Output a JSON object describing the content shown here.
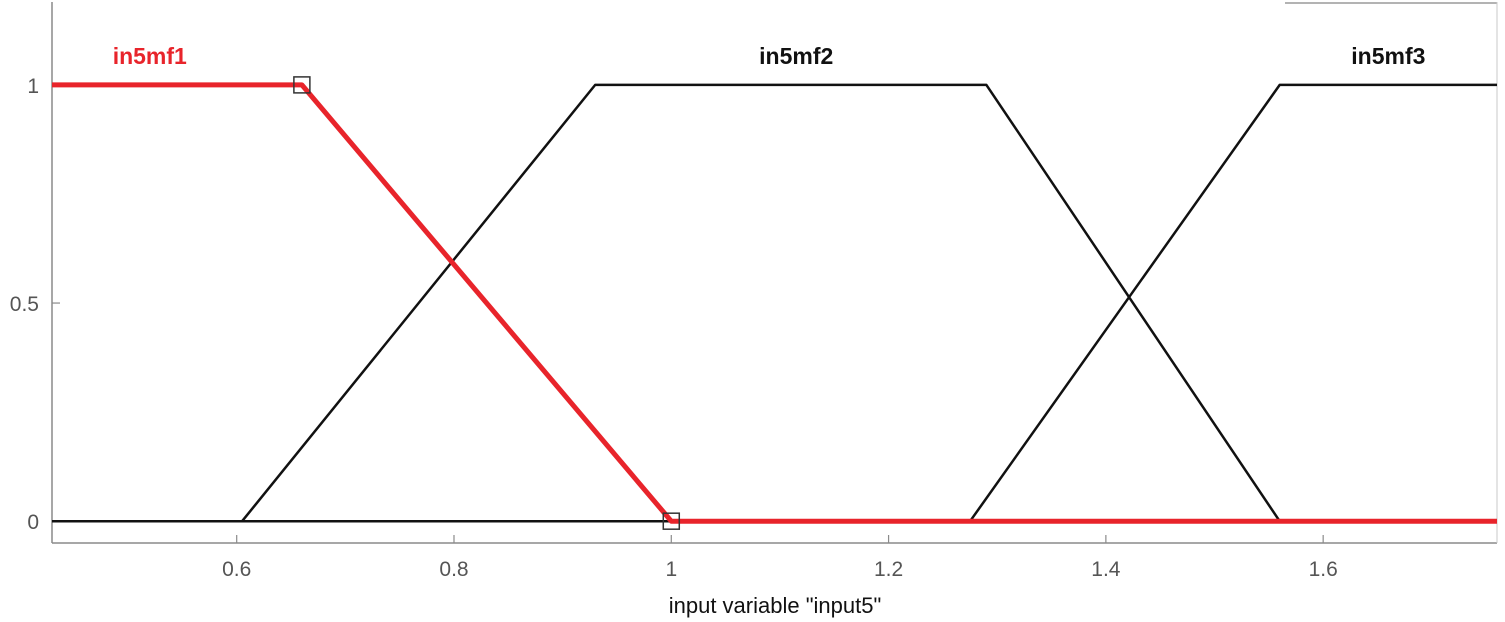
{
  "chart_data": {
    "type": "line",
    "title": "",
    "xlabel": "input variable \"input5\"",
    "ylabel": "",
    "xlim": [
      0.43,
      1.76
    ],
    "ylim": [
      -0.05,
      1.19
    ],
    "xticks": [
      0.6,
      0.8,
      1,
      1.2,
      1.4,
      1.6
    ],
    "xtick_labels": [
      "0.6",
      "0.8",
      "1",
      "1.2",
      "1.4",
      "1.6"
    ],
    "yticks": [
      0,
      0.5,
      1
    ],
    "ytick_labels": [
      "0",
      "0.5",
      "1"
    ],
    "grid": false,
    "selected_color": "#e8242b",
    "default_color": "#111111",
    "series": [
      {
        "name": "in5mf1",
        "selected": true,
        "label_x": 0.52,
        "points": [
          [
            0.43,
            1
          ],
          [
            0.66,
            1
          ],
          [
            1.0,
            0
          ],
          [
            1.76,
            0
          ]
        ],
        "handles": [
          [
            0.66,
            1
          ],
          [
            1.0,
            0
          ]
        ]
      },
      {
        "name": "in5mf2",
        "selected": false,
        "label_x": 1.115,
        "points": [
          [
            0.43,
            0
          ],
          [
            0.605,
            0
          ],
          [
            0.93,
            1
          ],
          [
            1.29,
            1
          ],
          [
            1.56,
            0
          ],
          [
            1.76,
            0
          ]
        ]
      },
      {
        "name": "in5mf3",
        "selected": false,
        "label_x": 1.66,
        "points": [
          [
            0.43,
            0
          ],
          [
            1.275,
            0
          ],
          [
            1.56,
            1
          ],
          [
            1.76,
            1
          ]
        ]
      }
    ]
  }
}
